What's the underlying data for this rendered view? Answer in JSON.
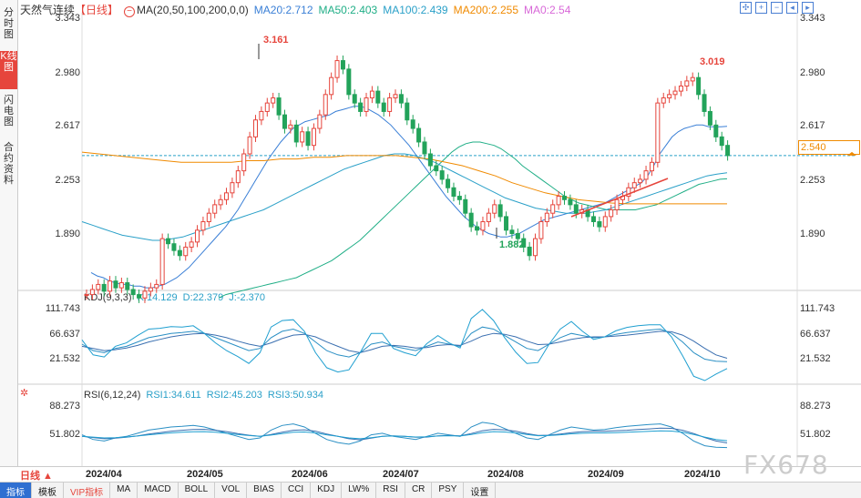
{
  "sidebar": {
    "tabs": [
      {
        "label": "分时图",
        "active": false
      },
      {
        "label": "K线图",
        "active": true
      },
      {
        "label": "闪电图",
        "active": false
      },
      {
        "label": "合约资料",
        "active": false
      }
    ]
  },
  "header": {
    "title": "天然气连续",
    "period": "【日线】",
    "ma_label": "MA(20,50,100,200,0,0)",
    "ma20": "MA20:2.712",
    "ma50": "MA50:2.403",
    "ma100": "MA100:2.439",
    "ma200": "MA200:2.255",
    "ma0": "MA0:2.54"
  },
  "colors": {
    "up": "#e6453c",
    "down": "#22a35a",
    "ma20": "#3a7fd6",
    "ma50": "#1fae86",
    "ma100": "#2aa0c8",
    "ma200": "#f08a00",
    "ma0": "#d868d8"
  },
  "main_axis": {
    "right_labels": [
      "3.343",
      "2.980",
      "2.617",
      "2.253",
      "1.890"
    ],
    "left_labels": [
      "3.343",
      "2.980",
      "2.617",
      "2.253",
      "1.890"
    ],
    "current_price": "2.540",
    "high_marker": "3.161",
    "high_marker2": "3.019",
    "low_marker": "1.882"
  },
  "kdj": {
    "legend_name": "KDJ(9,3,3)",
    "k": "K:14.129",
    "d": "D:22.379",
    "j": "J:-2.370",
    "axis_labels": [
      "111.743",
      "66.637",
      "21.532"
    ]
  },
  "rsi": {
    "legend_name": "RSI(6,12,24)",
    "rsi1": "RSI1:34.611",
    "rsi2": "RSI2:45.203",
    "rsi3": "RSI3:50.934",
    "axis_labels": [
      "88.273",
      "51.802"
    ]
  },
  "date_axis": {
    "period_button": "日线 ▲",
    "dates": [
      "2024/04",
      "2024/05",
      "2024/06",
      "2024/07",
      "2024/08",
      "2024/09",
      "2024/10"
    ]
  },
  "bottom_tabs": [
    "指标",
    "模板",
    "VIP指标",
    "MA",
    "MACD",
    "BOLL",
    "VOL",
    "BIAS",
    "CCI",
    "KDJ",
    "LW%",
    "RSI",
    "CR",
    "PSY",
    "设置"
  ],
  "watermark": "FX678",
  "chart_data": {
    "type": "candlestick",
    "ylim": [
      1.75,
      3.35
    ],
    "closes": [
      1.72,
      1.75,
      1.78,
      1.74,
      1.8,
      1.76,
      1.79,
      1.75,
      1.72,
      1.7,
      1.74,
      1.76,
      1.78,
      2.05,
      2.02,
      1.98,
      1.95,
      2.0,
      2.03,
      2.1,
      2.15,
      2.2,
      2.25,
      2.28,
      2.32,
      2.38,
      2.45,
      2.55,
      2.65,
      2.75,
      2.8,
      2.85,
      2.88,
      2.78,
      2.7,
      2.72,
      2.62,
      2.68,
      2.6,
      2.7,
      2.78,
      2.9,
      3.0,
      3.1,
      3.05,
      2.9,
      2.85,
      2.8,
      2.88,
      2.92,
      2.85,
      2.8,
      2.88,
      2.9,
      2.85,
      2.75,
      2.7,
      2.62,
      2.55,
      2.48,
      2.45,
      2.4,
      2.35,
      2.3,
      2.28,
      2.2,
      2.12,
      2.1,
      2.15,
      2.2,
      2.25,
      2.18,
      2.1,
      2.08,
      2.05,
      2.0,
      1.95,
      2.05,
      2.15,
      2.2,
      2.25,
      2.3,
      2.28,
      2.25,
      2.2,
      2.22,
      2.18,
      2.15,
      2.12,
      2.18,
      2.22,
      2.28,
      2.3,
      2.35,
      2.38,
      2.4,
      2.45,
      2.5,
      2.85,
      2.88,
      2.9,
      2.92,
      2.95,
      2.98,
      3.0,
      2.9,
      2.8,
      2.72,
      2.65,
      2.6,
      2.54
    ],
    "ma20": [
      1.85,
      1.83,
      1.82,
      1.8,
      1.79,
      1.78,
      1.78,
      1.77,
      1.77,
      1.76,
      1.76,
      1.77,
      1.78,
      1.8,
      1.82,
      1.85,
      1.88,
      1.92,
      1.96,
      2.0,
      2.04,
      2.08,
      2.12,
      2.17,
      2.22,
      2.28,
      2.34,
      2.4,
      2.46,
      2.52,
      2.57,
      2.62,
      2.66,
      2.7,
      2.72,
      2.74,
      2.75,
      2.76,
      2.77,
      2.78,
      2.8,
      2.81,
      2.82,
      2.83,
      2.83,
      2.82,
      2.8,
      2.78,
      2.75,
      2.72,
      2.68,
      2.64,
      2.6,
      2.55,
      2.5,
      2.45,
      2.4,
      2.35,
      2.3,
      2.26,
      2.22,
      2.18,
      2.15,
      2.12,
      2.1,
      2.08,
      2.07,
      2.06,
      2.06,
      2.07,
      2.08,
      2.1,
      2.12,
      2.14,
      2.16,
      2.17,
      2.18,
      2.19,
      2.2,
      2.21,
      2.22,
      2.23,
      2.24,
      2.25,
      2.26,
      2.28,
      2.3,
      2.32,
      2.34,
      2.36,
      2.38,
      2.42,
      2.48,
      2.55,
      2.6,
      2.65,
      2.68,
      2.7,
      2.71,
      2.72,
      2.72,
      2.71,
      2.71,
      2.71,
      2.712
    ],
    "ma50": [
      1.7,
      1.72,
      1.73,
      1.74,
      1.75,
      1.76,
      1.77,
      1.78,
      1.79,
      1.8,
      1.81,
      1.82,
      1.84,
      1.86,
      1.88,
      1.9,
      1.92,
      1.95,
      1.98,
      2.01,
      2.04,
      2.08,
      2.12,
      2.16,
      2.2,
      2.24,
      2.28,
      2.32,
      2.36,
      2.4,
      2.44,
      2.48,
      2.52,
      2.56,
      2.59,
      2.61,
      2.62,
      2.62,
      2.61,
      2.6,
      2.58,
      2.55,
      2.52,
      2.48,
      2.45,
      2.42,
      2.39,
      2.36,
      2.33,
      2.3,
      2.28,
      2.26,
      2.25,
      2.24,
      2.23,
      2.22,
      2.22,
      2.22,
      2.22,
      2.22,
      2.23,
      2.24,
      2.25,
      2.27,
      2.29,
      2.31,
      2.33,
      2.35,
      2.37,
      2.38,
      2.39,
      2.4,
      2.403
    ],
    "ma100": [
      2.15,
      2.13,
      2.11,
      2.09,
      2.07,
      2.06,
      2.05,
      2.04,
      2.04,
      2.05,
      2.06,
      2.08,
      2.1,
      2.12,
      2.14,
      2.16,
      2.18,
      2.2,
      2.22,
      2.25,
      2.28,
      2.31,
      2.34,
      2.37,
      2.4,
      2.43,
      2.46,
      2.48,
      2.5,
      2.52,
      2.54,
      2.55,
      2.55,
      2.54,
      2.52,
      2.5,
      2.47,
      2.44,
      2.41,
      2.38,
      2.35,
      2.32,
      2.29,
      2.27,
      2.25,
      2.23,
      2.22,
      2.21,
      2.2,
      2.2,
      2.2,
      2.21,
      2.22,
      2.24,
      2.26,
      2.28,
      2.3,
      2.32,
      2.34,
      2.36,
      2.38,
      2.4,
      2.42,
      2.43,
      2.439
    ],
    "ma200": [
      2.56,
      2.55,
      2.54,
      2.53,
      2.52,
      2.51,
      2.5,
      2.5,
      2.5,
      2.5,
      2.51,
      2.51,
      2.52,
      2.52,
      2.53,
      2.53,
      2.54,
      2.54,
      2.54,
      2.54,
      2.53,
      2.52,
      2.5,
      2.48,
      2.45,
      2.42,
      2.38,
      2.35,
      2.32,
      2.3,
      2.28,
      2.27,
      2.26,
      2.255,
      2.255,
      2.255,
      2.255,
      2.255,
      2.255,
      2.255
    ],
    "kdj_k": [
      55,
      40,
      35,
      45,
      50,
      60,
      70,
      75,
      80,
      82,
      85,
      80,
      70,
      60,
      50,
      40,
      45,
      70,
      85,
      90,
      80,
      60,
      40,
      30,
      25,
      35,
      55,
      60,
      50,
      45,
      40,
      50,
      60,
      55,
      50,
      80,
      95,
      90,
      75,
      60,
      45,
      40,
      55,
      70,
      80,
      75,
      70,
      72,
      78,
      82,
      85,
      88,
      90,
      80,
      60,
      35,
      20,
      15,
      14
    ],
    "kdj_d": [
      50,
      45,
      40,
      42,
      46,
      52,
      60,
      66,
      72,
      76,
      79,
      80,
      76,
      70,
      62,
      55,
      50,
      58,
      68,
      76,
      78,
      72,
      60,
      50,
      40,
      35,
      42,
      50,
      52,
      50,
      46,
      47,
      52,
      54,
      52,
      62,
      74,
      80,
      78,
      72,
      62,
      54,
      55,
      60,
      66,
      70,
      72,
      72,
      74,
      76,
      79,
      82,
      85,
      84,
      76,
      62,
      45,
      30,
      22
    ],
    "kdj_j": [
      65,
      30,
      25,
      50,
      58,
      75,
      90,
      92,
      96,
      95,
      98,
      80,
      58,
      40,
      26,
      10,
      35,
      95,
      110,
      112,
      85,
      35,
      0,
      -10,
      -5,
      35,
      80,
      80,
      45,
      35,
      28,
      56,
      75,
      58,
      46,
      115,
      136,
      110,
      70,
      36,
      10,
      12,
      55,
      90,
      108,
      85,
      66,
      72,
      86,
      94,
      98,
      100,
      100,
      72,
      28,
      -20,
      -30,
      -15,
      -2
    ]
  }
}
